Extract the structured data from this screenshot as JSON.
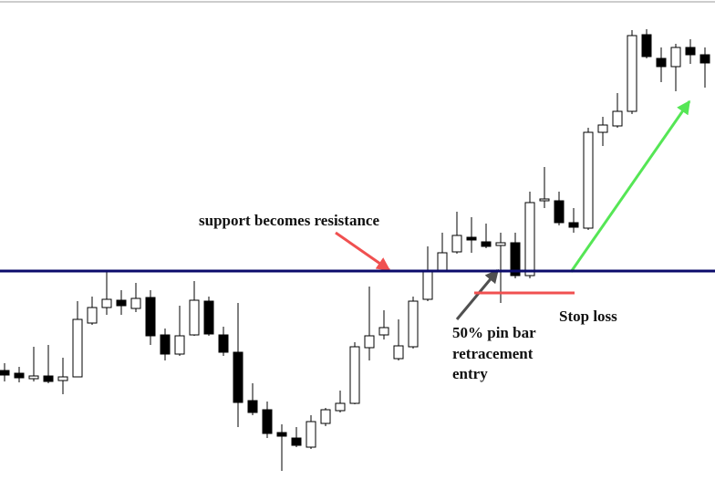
{
  "chart_data": {
    "type": "candlestick",
    "ylim": [
      0,
      526
    ],
    "up_color": "#ffffff",
    "down_color": "#000000",
    "open": [
      120,
      117,
      111,
      114,
      109,
      113,
      172,
      189,
      197,
      188,
      200,
      159,
      138,
      159,
      196,
      159,
      140,
      87,
      77,
      52,
      46,
      36,
      62,
      76,
      84,
      145,
      159,
      133,
      146,
      198,
      230,
      250,
      266,
      261,
      257,
      260,
      224,
      306,
      306,
      282,
      276,
      381,
      388,
      404,
      488,
      462,
      453,
      474,
      466
    ],
    "high": [
      128,
      124,
      146,
      148,
      134,
      196,
      201,
      228,
      208,
      216,
      208,
      166,
      191,
      218,
      201,
      168,
      194,
      106,
      86,
      61,
      58,
      71,
      79,
      98,
      151,
      212,
      186,
      176,
      201,
      256,
      271,
      294,
      288,
      281,
      271,
      271,
      316,
      343,
      316,
      298,
      386,
      398,
      424,
      493,
      494,
      474,
      478,
      483,
      474
    ],
    "low": [
      108,
      107,
      108,
      106,
      94,
      113,
      170,
      181,
      181,
      184,
      148,
      131,
      136,
      158,
      158,
      136,
      58,
      71,
      46,
      10,
      36,
      34,
      59,
      74,
      83,
      131,
      154,
      131,
      144,
      196,
      228,
      248,
      249,
      254,
      194,
      221,
      221,
      298,
      279,
      271,
      274,
      366,
      386,
      401,
      462,
      436,
      426,
      456,
      430
    ],
    "close": [
      115,
      112,
      114,
      108,
      113,
      176,
      189,
      198,
      191,
      199,
      158,
      138,
      158,
      197,
      160,
      140,
      85,
      74,
      51,
      48,
      38,
      64,
      77,
      84,
      146,
      158,
      167,
      147,
      196,
      230,
      249,
      268,
      263,
      256,
      260,
      224,
      304,
      308,
      282,
      277,
      381,
      389,
      404,
      487,
      464,
      453,
      474,
      466,
      457
    ],
    "support_level": 229,
    "support_color": "#0b0b6b",
    "stop_loss_level": 205,
    "annotations": {
      "support": "support becomes resistance",
      "entry": [
        "50% pin bar",
        "retracement",
        "entry"
      ],
      "stop_loss": "Stop loss"
    }
  }
}
